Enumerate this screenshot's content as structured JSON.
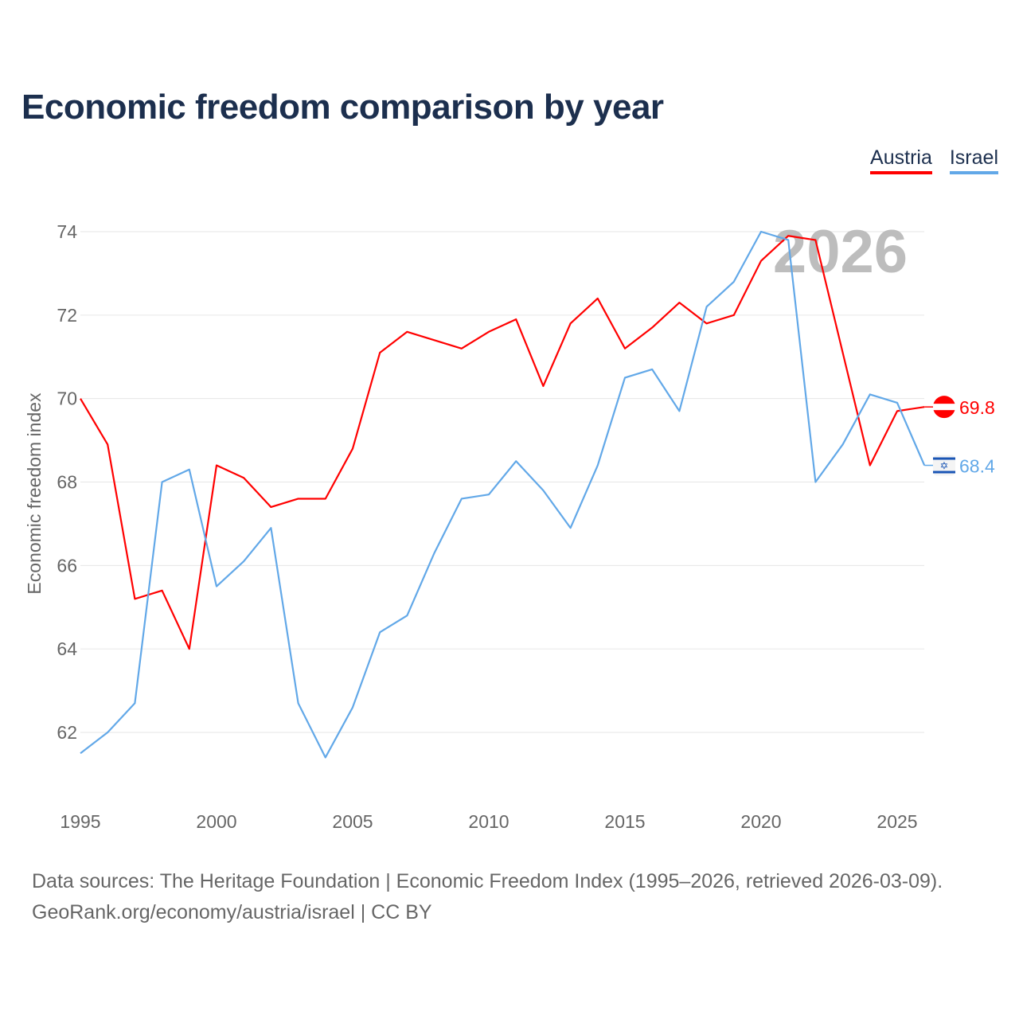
{
  "title": "Economic freedom comparison by year",
  "legend": [
    {
      "name": "Austria",
      "color": "#ff0000"
    },
    {
      "name": "Israel",
      "color": "#62a8e8"
    }
  ],
  "watermark_year": "2026",
  "source_line1": "Data sources: The Heritage Foundation | Economic Freedom Index (1995–2026, retrieved 2026-03-09).",
  "source_line2": "GeoRank.org/economy/austria/israel | CC BY",
  "chart_data": {
    "type": "line",
    "title": "Economic freedom comparison by year",
    "xlabel": "",
    "ylabel": "Economic freedom index",
    "x": [
      1995,
      1996,
      1997,
      1998,
      1999,
      2000,
      2001,
      2002,
      2003,
      2004,
      2005,
      2006,
      2007,
      2008,
      2009,
      2010,
      2011,
      2012,
      2013,
      2014,
      2015,
      2016,
      2017,
      2018,
      2019,
      2020,
      2021,
      2022,
      2023,
      2024,
      2025,
      2026
    ],
    "xlim": [
      1995,
      2026
    ],
    "ylim": [
      60.5,
      75
    ],
    "xticks": [
      1995,
      2000,
      2005,
      2010,
      2015,
      2020,
      2025
    ],
    "yticks": [
      62,
      64,
      66,
      68,
      70,
      72,
      74
    ],
    "grid": true,
    "legend_position": "top-right",
    "series": [
      {
        "name": "Austria",
        "color": "#ff0000",
        "end_label": "69.8",
        "values": [
          70.0,
          68.9,
          65.2,
          65.4,
          64.0,
          68.4,
          68.1,
          67.4,
          67.6,
          67.6,
          68.8,
          71.1,
          71.6,
          71.4,
          71.2,
          71.6,
          71.9,
          70.3,
          71.8,
          72.4,
          71.2,
          71.7,
          72.3,
          71.8,
          72.0,
          73.3,
          73.9,
          73.8,
          71.1,
          68.4,
          69.7,
          69.8
        ]
      },
      {
        "name": "Israel",
        "color": "#62a8e8",
        "end_label": "68.4",
        "values": [
          61.5,
          62.0,
          62.7,
          68.0,
          68.3,
          65.5,
          66.1,
          66.9,
          62.7,
          61.4,
          62.6,
          64.4,
          64.8,
          66.3,
          67.6,
          67.7,
          68.5,
          67.8,
          66.9,
          68.4,
          70.5,
          70.7,
          69.7,
          72.2,
          72.8,
          74.0,
          73.8,
          68.0,
          68.9,
          70.1,
          69.9,
          68.4
        ]
      }
    ]
  }
}
